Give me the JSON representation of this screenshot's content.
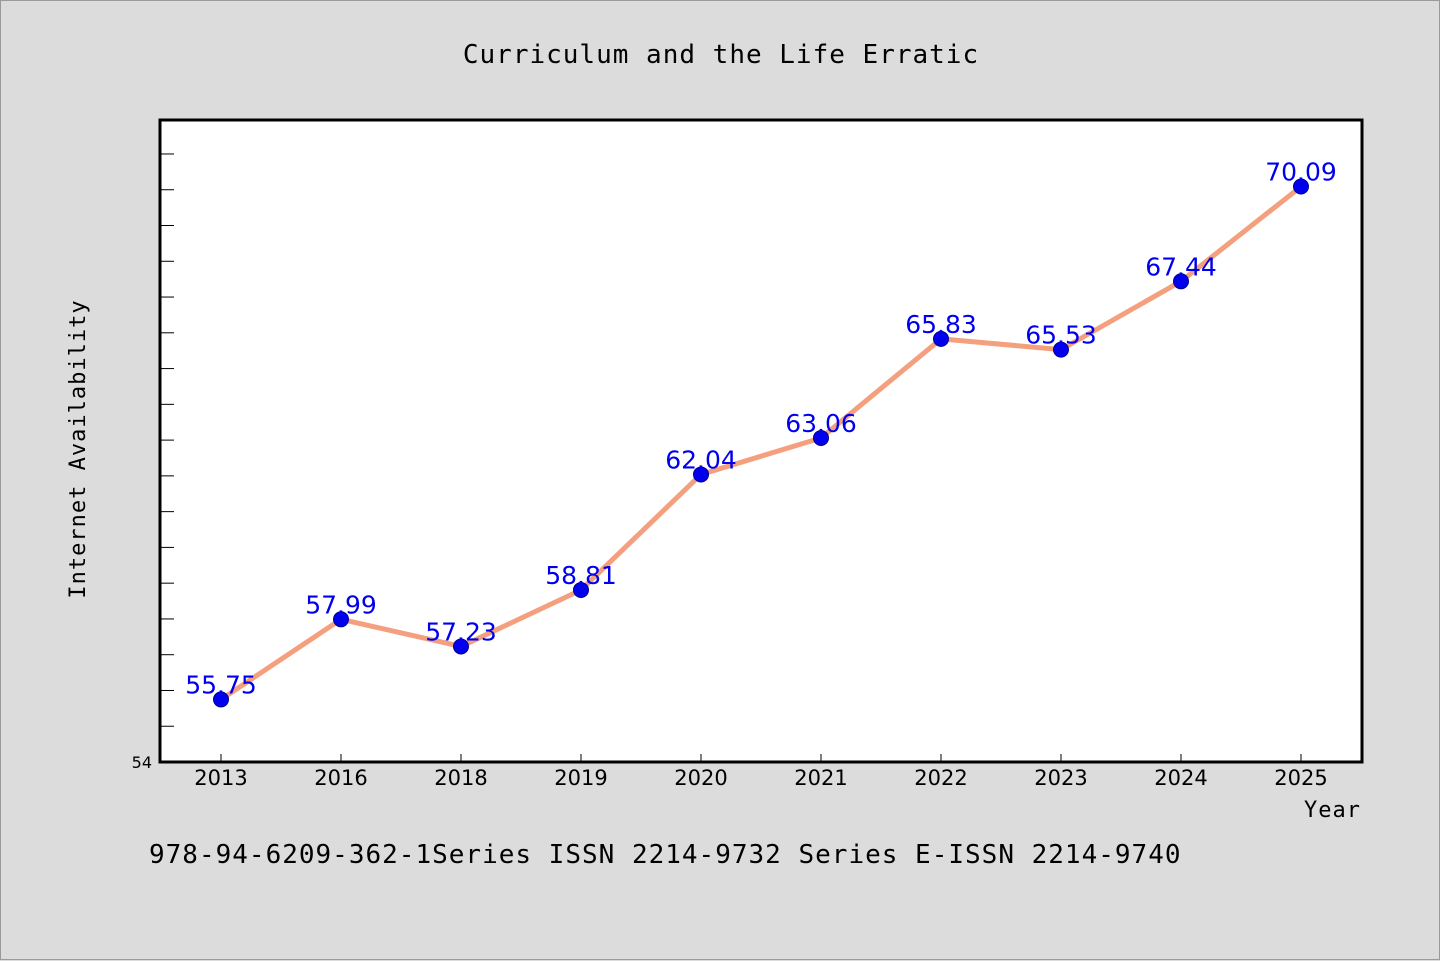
{
  "chart_data": {
    "type": "line",
    "title": "Curriculum and the Life Erratic",
    "xlabel": "Year",
    "ylabel": "Internet Availability",
    "categories": [
      "2013",
      "2016",
      "2018",
      "2019",
      "2020",
      "2021",
      "2022",
      "2023",
      "2024",
      "2025"
    ],
    "series": [
      {
        "values": [
          55.75,
          57.99,
          57.23,
          58.81,
          62.04,
          63.06,
          65.83,
          65.53,
          67.44,
          70.09
        ],
        "data_labels": [
          "55.75",
          "57.99",
          "57.23",
          "58.81",
          "62.04",
          "63.06",
          "65.83",
          "65.53",
          "67.44",
          "70.09"
        ]
      }
    ],
    "ylim": [
      54,
      71.95
    ],
    "y_tick_labels": [
      "54"
    ],
    "y_minor_tick_step": 1,
    "grid": false,
    "legend": "none",
    "colors": {
      "line": "#f4a07e",
      "marker": "#0000ee",
      "data_label": "#0000ee",
      "plot_background": "#ffffff",
      "figure_background": "#dcdcdc"
    }
  },
  "footer": {
    "text": "978-94-6209-362-1Series ISSN 2214-9732 Series E-ISSN 2214-9740"
  }
}
